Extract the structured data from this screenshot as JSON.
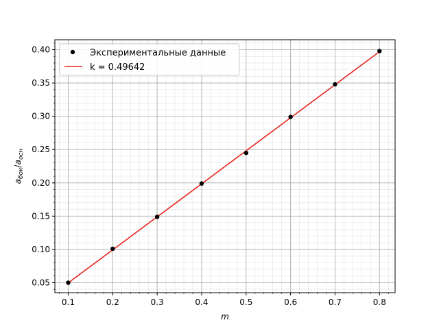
{
  "chart_data": {
    "type": "scatter",
    "xlabel": "m",
    "ylabel": {
      "main1": "a",
      "sub1": "бок",
      "slash": "/",
      "main2": "a",
      "sub2": "осн"
    },
    "xlim": [
      0.07,
      0.835
    ],
    "ylim": [
      0.035,
      0.415
    ],
    "x_ticks": [
      0.1,
      0.2,
      0.3,
      0.4,
      0.5,
      0.6,
      0.7,
      0.8
    ],
    "x_tick_labels": [
      "0.1",
      "0.2",
      "0.3",
      "0.4",
      "0.5",
      "0.6",
      "0.7",
      "0.8"
    ],
    "y_ticks": [
      0.05,
      0.1,
      0.15,
      0.2,
      0.25,
      0.3,
      0.35,
      0.4
    ],
    "y_tick_labels": [
      "0.05",
      "0.10",
      "0.15",
      "0.20",
      "0.25",
      "0.30",
      "0.35",
      "0.40"
    ],
    "grid": "major and minor",
    "legend_placement": "top-left",
    "series": [
      {
        "name": "Экспериментальные данные",
        "kind": "scatter",
        "color": "#000000",
        "x": [
          0.1,
          0.2,
          0.3,
          0.4,
          0.5,
          0.6,
          0.7,
          0.8
        ],
        "y": [
          0.05,
          0.101,
          0.149,
          0.199,
          0.245,
          0.299,
          0.348,
          0.398
        ]
      },
      {
        "name": "k = 0.49642",
        "kind": "line",
        "color": "#e8231b",
        "slope": 0.49642,
        "x": [
          0.1,
          0.8
        ]
      }
    ]
  }
}
